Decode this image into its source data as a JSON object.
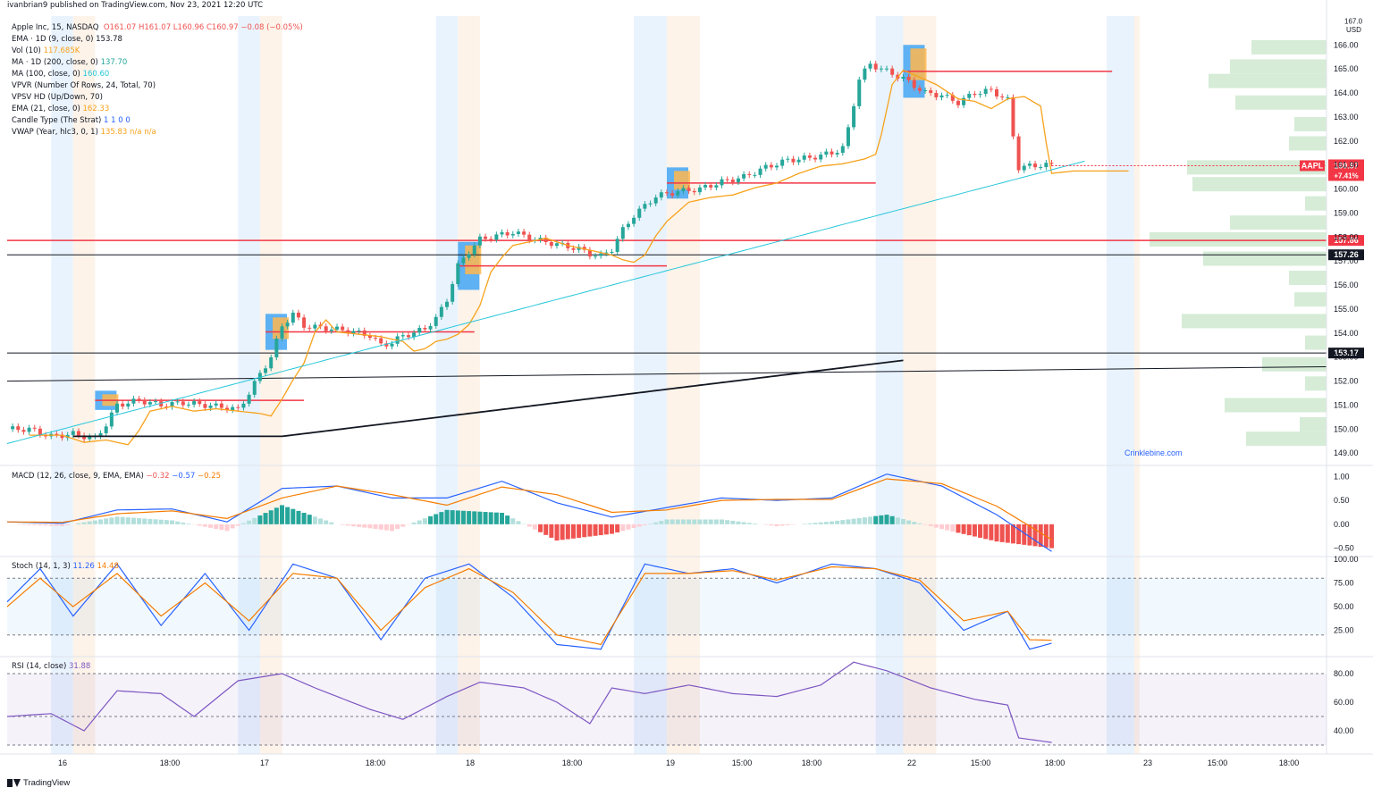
{
  "header": {
    "published": "ivanbrian9 published on TradingView.com, Nov 23, 2021 12:20 UTC"
  },
  "legend": {
    "title": "Apple Inc, 15, NASDAQ",
    "ohlc": "O161.07  H161.07  L160.96  C160.97  −0.08 (−0.05%)",
    "indicators": [
      {
        "label": "EMA · 1D (9, close, 0)",
        "value": "153.78",
        "color": "#131722"
      },
      {
        "label": "Vol (10)",
        "value": "117.685K",
        "color": "#f7a21b"
      },
      {
        "label": "MA · 1D (200, close, 0)",
        "value": "137.70",
        "color": "#26a69a"
      },
      {
        "label": "MA (100, close, 0)",
        "value": "160.60",
        "color": "#26c6da"
      },
      {
        "label": "VPVR (Number Of Rows, 24, Total, 70)",
        "value": "",
        "color": "#131722"
      },
      {
        "label": "VPSV HD (Up/Down, 70)",
        "value": "",
        "color": "#131722"
      },
      {
        "label": "EMA (21, close, 0)",
        "value": "162.33",
        "color": "#f7a21b"
      },
      {
        "label": "Candle Type (The Strat)",
        "value": "1  1  0  0",
        "color": "#2962ff"
      },
      {
        "label": "VWAP (Year, hlc3, 0, 1)",
        "value": "135.83  n/a  n/a",
        "color": "#f7a21b"
      }
    ]
  },
  "panes": {
    "macd": {
      "label": "MACD (12, 26, close, 9, EMA, EMA)",
      "values": [
        "−0.32",
        "−0.57",
        "−0.25"
      ],
      "colors": [
        "#ef5350",
        "#2962ff",
        "#f57c00"
      ]
    },
    "stoch": {
      "label": "Stoch (14, 1, 3)",
      "values": [
        "11.26",
        "14.48"
      ],
      "colors": [
        "#2962ff",
        "#f57c00"
      ]
    },
    "rsi": {
      "label": "RSI (14, close)",
      "values": [
        "31.88"
      ],
      "colors": [
        "#7e57c2"
      ]
    }
  },
  "footer": {
    "brand": "TradingView"
  },
  "watermark": "Crinklebine.com",
  "chart_data": [
    {
      "type": "candlestick",
      "title": "Apple Inc, 15, NASDAQ",
      "ylabel": "USD",
      "ylim": [
        148.6,
        167.2
      ],
      "x_ticks": [
        "16",
        "18:00",
        "17",
        "18:00",
        "18",
        "18:00",
        "19",
        "15:00",
        "18:00",
        "22",
        "15:00",
        "18:00",
        "23",
        "15:00",
        "18:00"
      ],
      "y_ticks": [
        149,
        150,
        151,
        152,
        153,
        154,
        155,
        156,
        157,
        158,
        159,
        160,
        161,
        162,
        163,
        164,
        165,
        166
      ],
      "y_top_partial": "167.0",
      "close_path": [
        [
          0,
          150.0
        ],
        [
          4,
          150.0
        ],
        [
          8,
          149.7
        ],
        [
          12,
          149.8
        ],
        [
          16,
          149.6
        ],
        [
          18,
          150.2
        ],
        [
          20,
          151.0
        ],
        [
          24,
          151.2
        ],
        [
          28,
          151.0
        ],
        [
          32,
          151.1
        ],
        [
          36,
          151.0
        ],
        [
          40,
          150.9
        ],
        [
          42,
          150.8
        ],
        [
          44,
          151.5
        ],
        [
          46,
          152.3
        ],
        [
          48,
          153.0
        ],
        [
          50,
          154.3
        ],
        [
          52,
          154.8
        ],
        [
          54,
          154.3
        ],
        [
          58,
          154.2
        ],
        [
          62,
          154.1
        ],
        [
          66,
          153.9
        ],
        [
          68,
          153.5
        ],
        [
          70,
          153.6
        ],
        [
          72,
          153.9
        ],
        [
          74,
          154.0
        ],
        [
          76,
          154.2
        ],
        [
          78,
          154.6
        ],
        [
          80,
          155.4
        ],
        [
          82,
          156.8
        ],
        [
          84,
          157.4
        ],
        [
          86,
          157.9
        ],
        [
          88,
          158.0
        ],
        [
          92,
          158.2
        ],
        [
          96,
          157.9
        ],
        [
          100,
          157.7
        ],
        [
          104,
          157.5
        ],
        [
          106,
          157.3
        ],
        [
          108,
          157.2
        ],
        [
          110,
          157.5
        ],
        [
          112,
          158.3
        ],
        [
          114,
          158.9
        ],
        [
          116,
          159.3
        ],
        [
          118,
          159.7
        ],
        [
          122,
          159.9
        ],
        [
          126,
          160.0
        ],
        [
          130,
          160.3
        ],
        [
          134,
          160.5
        ],
        [
          138,
          160.9
        ],
        [
          142,
          161.2
        ],
        [
          146,
          161.3
        ],
        [
          150,
          161.5
        ],
        [
          152,
          161.7
        ],
        [
          153,
          162.5
        ],
        [
          155,
          164.6
        ],
        [
          157,
          165.2
        ],
        [
          160,
          164.9
        ],
        [
          163,
          164.6
        ],
        [
          165,
          164.3
        ],
        [
          167,
          164.0
        ],
        [
          170,
          163.9
        ],
        [
          173,
          163.6
        ],
        [
          176,
          164.0
        ],
        [
          179,
          164.1
        ],
        [
          182,
          163.7
        ],
        [
          183,
          162.2
        ],
        [
          184,
          160.9
        ],
        [
          188,
          161.0
        ],
        [
          190,
          161.0
        ]
      ],
      "horizontal_levels": [
        {
          "value": 157.86,
          "label": "157.86",
          "color": "#f23645"
        },
        {
          "value": 157.26,
          "label": "157.26",
          "color": "#131722"
        },
        {
          "value": 153.17,
          "label": "153.17",
          "color": "#131722"
        }
      ],
      "current_price": {
        "value": 160.97,
        "label": "160.97",
        "change": "+7.41%",
        "symbol": "AAPL",
        "color": "#f23645"
      },
      "series": [
        {
          "name": "EMA (21, close, 0)",
          "color": "#f7a21b"
        },
        {
          "name": "MA (100, close, 0)",
          "color": "#26c6da"
        },
        {
          "name": "EMA · 1D (9, close, 0)",
          "color": "#131722"
        }
      ]
    },
    {
      "type": "line",
      "title": "MACD (12, 26, close, 9, EMA, EMA)",
      "ylim": [
        -0.62,
        1.1
      ],
      "y_ticks": [
        "1.00",
        "0.50",
        "0.00",
        "−0.50"
      ],
      "macd": [
        [
          0,
          0.05
        ],
        [
          10,
          0.02
        ],
        [
          20,
          0.3
        ],
        [
          30,
          0.32
        ],
        [
          40,
          0.05
        ],
        [
          50,
          0.75
        ],
        [
          60,
          0.8
        ],
        [
          70,
          0.55
        ],
        [
          80,
          0.55
        ],
        [
          90,
          0.9
        ],
        [
          100,
          0.45
        ],
        [
          110,
          0.15
        ],
        [
          120,
          0.35
        ],
        [
          130,
          0.55
        ],
        [
          140,
          0.5
        ],
        [
          150,
          0.55
        ],
        [
          160,
          1.05
        ],
        [
          170,
          0.8
        ],
        [
          180,
          0.2
        ],
        [
          190,
          -0.57
        ]
      ],
      "signal": [
        [
          0,
          0.05
        ],
        [
          10,
          0.04
        ],
        [
          20,
          0.22
        ],
        [
          30,
          0.28
        ],
        [
          40,
          0.12
        ],
        [
          50,
          0.55
        ],
        [
          60,
          0.8
        ],
        [
          70,
          0.62
        ],
        [
          80,
          0.4
        ],
        [
          90,
          0.78
        ],
        [
          100,
          0.62
        ],
        [
          110,
          0.25
        ],
        [
          120,
          0.3
        ],
        [
          130,
          0.5
        ],
        [
          140,
          0.52
        ],
        [
          150,
          0.52
        ],
        [
          160,
          0.95
        ],
        [
          170,
          0.85
        ],
        [
          180,
          0.38
        ],
        [
          190,
          -0.32
        ]
      ]
    },
    {
      "type": "line",
      "title": "Stoch (14, 1, 3)",
      "ylim": [
        0,
        100
      ],
      "y_ticks": [
        "100.00",
        "75.00",
        "50.00",
        "25.00"
      ],
      "k": [
        [
          0,
          55
        ],
        [
          6,
          90
        ],
        [
          12,
          40
        ],
        [
          20,
          95
        ],
        [
          28,
          30
        ],
        [
          36,
          85
        ],
        [
          44,
          25
        ],
        [
          52,
          95
        ],
        [
          60,
          80
        ],
        [
          68,
          15
        ],
        [
          76,
          80
        ],
        [
          84,
          95
        ],
        [
          92,
          60
        ],
        [
          100,
          10
        ],
        [
          108,
          5
        ],
        [
          116,
          95
        ],
        [
          124,
          85
        ],
        [
          132,
          90
        ],
        [
          140,
          75
        ],
        [
          150,
          95
        ],
        [
          158,
          90
        ],
        [
          166,
          75
        ],
        [
          174,
          25
        ],
        [
          182,
          45
        ],
        [
          186,
          5
        ],
        [
          190,
          11.26
        ]
      ],
      "d": [
        [
          0,
          50
        ],
        [
          6,
          80
        ],
        [
          12,
          50
        ],
        [
          20,
          85
        ],
        [
          28,
          40
        ],
        [
          36,
          75
        ],
        [
          44,
          35
        ],
        [
          52,
          85
        ],
        [
          60,
          80
        ],
        [
          68,
          25
        ],
        [
          76,
          70
        ],
        [
          84,
          90
        ],
        [
          92,
          65
        ],
        [
          100,
          20
        ],
        [
          108,
          10
        ],
        [
          116,
          85
        ],
        [
          124,
          85
        ],
        [
          132,
          88
        ],
        [
          140,
          78
        ],
        [
          150,
          92
        ],
        [
          158,
          90
        ],
        [
          166,
          78
        ],
        [
          174,
          35
        ],
        [
          182,
          45
        ],
        [
          186,
          15
        ],
        [
          190,
          14.48
        ]
      ]
    },
    {
      "type": "line",
      "title": "RSI (14, close)",
      "ylim": [
        25,
        90
      ],
      "y_ticks": [
        "80.00",
        "60.00",
        "40.00"
      ],
      "values": [
        [
          0,
          50
        ],
        [
          8,
          52
        ],
        [
          14,
          40
        ],
        [
          20,
          68
        ],
        [
          28,
          66
        ],
        [
          34,
          50
        ],
        [
          42,
          75
        ],
        [
          50,
          80
        ],
        [
          56,
          70
        ],
        [
          66,
          55
        ],
        [
          72,
          48
        ],
        [
          80,
          64
        ],
        [
          86,
          74
        ],
        [
          94,
          70
        ],
        [
          100,
          60
        ],
        [
          106,
          45
        ],
        [
          110,
          70
        ],
        [
          116,
          66
        ],
        [
          124,
          72
        ],
        [
          132,
          66
        ],
        [
          140,
          64
        ],
        [
          148,
          72
        ],
        [
          154,
          88
        ],
        [
          160,
          82
        ],
        [
          168,
          70
        ],
        [
          176,
          62
        ],
        [
          182,
          58
        ],
        [
          184,
          35
        ],
        [
          190,
          31.88
        ]
      ]
    }
  ]
}
